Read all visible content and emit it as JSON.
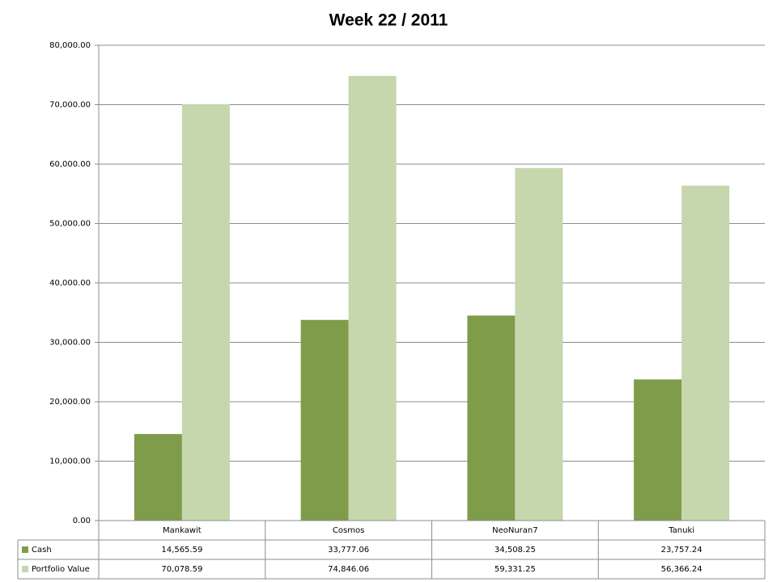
{
  "chart_data": {
    "type": "bar",
    "title": "Week 22 / 2011",
    "categories": [
      "Mankawit",
      "Cosmos",
      "NeoNuran7",
      "Tanuki"
    ],
    "series": [
      {
        "name": "Cash",
        "color": "#7f9c4a",
        "values": [
          14565.59,
          33777.06,
          34508.25,
          23757.24
        ],
        "value_labels": [
          "14,565.59",
          "33,777.06",
          "34,508.25",
          "23,757.24"
        ]
      },
      {
        "name": "Portfolio Value",
        "color": "#c6d6ad",
        "values": [
          70078.59,
          74846.06,
          59331.25,
          56366.24
        ],
        "value_labels": [
          "70,078.59",
          "74,846.06",
          "59,331.25",
          "56,366.24"
        ]
      }
    ],
    "ylim": [
      0,
      80000
    ],
    "yticks": [
      {
        "value": 0,
        "label": "0.00"
      },
      {
        "value": 10000,
        "label": "10,000.00"
      },
      {
        "value": 20000,
        "label": "20,000.00"
      },
      {
        "value": 30000,
        "label": "30,000.00"
      },
      {
        "value": 40000,
        "label": "40,000.00"
      },
      {
        "value": 50000,
        "label": "50,000.00"
      },
      {
        "value": 60000,
        "label": "60,000.00"
      },
      {
        "value": 70000,
        "label": "70,000.00"
      },
      {
        "value": 80000,
        "label": "80,000.00"
      }
    ],
    "grid": true
  }
}
